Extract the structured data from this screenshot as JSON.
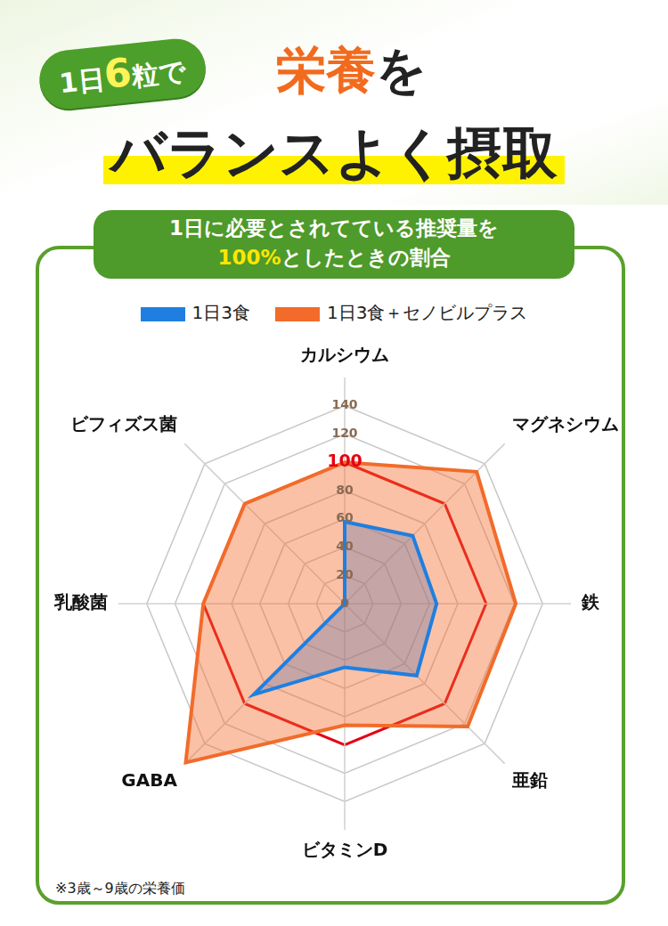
{
  "header": {
    "badge_parts": [
      "1日",
      "6",
      "粒で"
    ],
    "title_line1_parts": [
      "栄養",
      "を"
    ],
    "title_line2": "バランスよく摂取"
  },
  "panel_title": {
    "line1": "1日に必要とされてている推奨量を",
    "line2_parts": [
      "100%",
      "としたときの割合"
    ]
  },
  "chart_data": {
    "type": "radar",
    "categories": [
      "カルシウム",
      "マグネシウム",
      "鉄",
      "亜鉛",
      "ビタミンD",
      "GABA",
      "乳酸菌",
      "ビフィズス菌"
    ],
    "series": [
      {
        "name": "1日3食",
        "color": "#1f7fe0",
        "values": [
          58,
          68,
          65,
          72,
          45,
          91,
          0,
          0
        ]
      },
      {
        "name": "1日3食＋セノビルプラス",
        "color": "#f26b2a",
        "values": [
          100,
          132,
          121,
          123,
          86,
          159,
          100,
          100
        ]
      }
    ],
    "ylim": [
      0,
      160
    ],
    "yticks": [
      0,
      20,
      40,
      60,
      80,
      100,
      120,
      140
    ],
    "reference_line": {
      "value": 100,
      "color": "#e60012"
    },
    "legend": "top",
    "grid": true
  },
  "footnote": "※3歳～9歳の栄養価"
}
